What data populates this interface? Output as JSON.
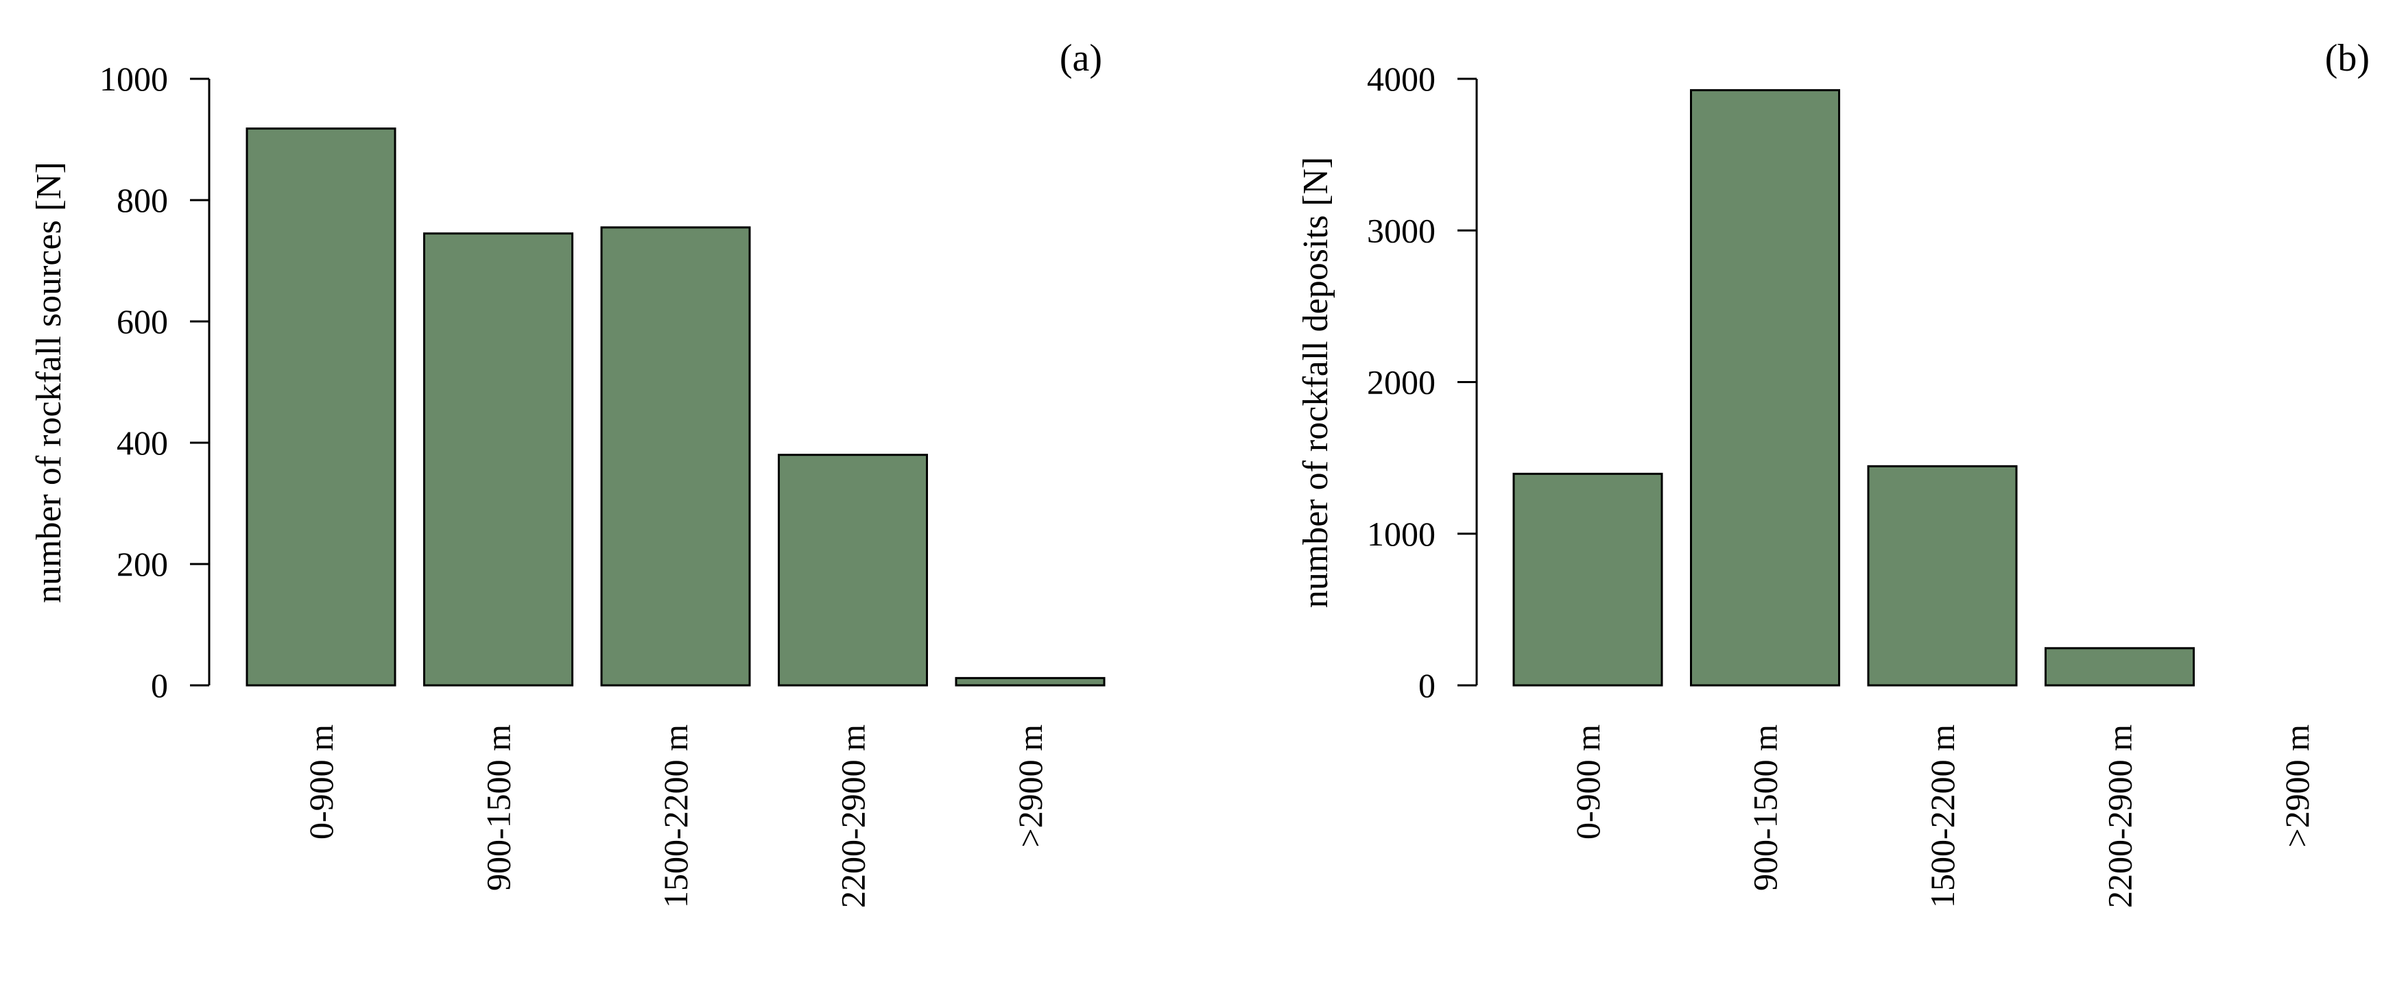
{
  "chart_data": [
    {
      "type": "bar",
      "panel_label": "(a)",
      "ylabel": "number of rockfall sources [N]",
      "xlabel": "",
      "categories": [
        "0-900 m",
        "900-1500 m",
        "1500-2200 m",
        "2200-2900 m",
        ">2900 m"
      ],
      "values": [
        918,
        745,
        755,
        380,
        12
      ],
      "ylim": [
        0,
        1000
      ],
      "yticks": [
        0,
        200,
        400,
        600,
        800,
        1000
      ],
      "grid": false,
      "legend": "none",
      "bar_color": "#6a8a69"
    },
    {
      "type": "bar",
      "panel_label": "(b)",
      "ylabel": "number of rockfall deposits [N]",
      "xlabel": "",
      "categories": [
        "0-900 m",
        "900-1500 m",
        "1500-2200 m",
        "2200-2900 m",
        ">2900 m"
      ],
      "values": [
        1395,
        3925,
        1445,
        245,
        0
      ],
      "ylim": [
        0,
        4000
      ],
      "yticks": [
        0,
        1000,
        2000,
        3000,
        4000
      ],
      "grid": false,
      "legend": "none",
      "bar_color": "#6a8a69"
    }
  ]
}
